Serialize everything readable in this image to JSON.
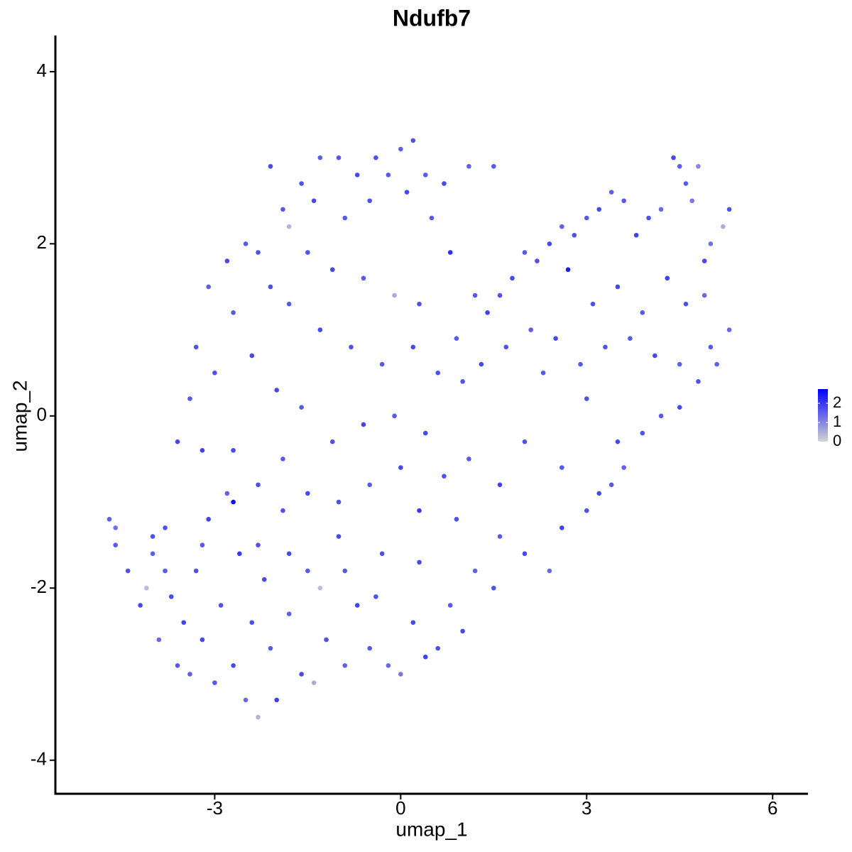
{
  "chart_data": {
    "type": "scatter",
    "title": "Ndufb7",
    "x_label": "umap_1",
    "y_label": "umap_2",
    "x": [
      -4.7,
      -4.6,
      -4.6,
      -4.4,
      -4.2,
      -4.1,
      -4.0,
      -3.9,
      -3.8,
      -3.7,
      -3.6,
      -3.5,
      -3.4,
      -3.3,
      -3.2,
      -3.1,
      -3.0,
      -2.9,
      -2.8,
      -2.7,
      -2.6,
      -2.5,
      -2.4,
      -2.3,
      -2.2,
      -2.1,
      -2.0,
      -1.9,
      -1.8,
      -1.6,
      -1.5,
      -1.4,
      -1.3,
      -1.2,
      -1.0,
      -0.9,
      -0.7,
      -0.5,
      -0.3,
      -0.2,
      0.0,
      0.2,
      0.4,
      0.6,
      0.8,
      1.0,
      1.2,
      1.5,
      1.6,
      2.0,
      2.4,
      2.6,
      3.0,
      3.2,
      3.4,
      3.6,
      3.9,
      4.2,
      4.5,
      4.8,
      5.0,
      5.1,
      5.3,
      5.3,
      5.2,
      5.0,
      4.9,
      4.7,
      4.5,
      4.4,
      4.6,
      4.8,
      4.2,
      4.0,
      3.8,
      3.6,
      3.4,
      3.2,
      3.0,
      2.8,
      2.6,
      2.4,
      2.2,
      2.0,
      1.8,
      1.6,
      1.4,
      1.2,
      2.7,
      3.1,
      3.5,
      3.9,
      4.3,
      4.6,
      4.9,
      3.7,
      4.1,
      4.5,
      3.3,
      2.9,
      2.5,
      2.1,
      1.7,
      1.3,
      0.9,
      0.8,
      1.0,
      2.3,
      3.0,
      3.5,
      2.6,
      2.0,
      1.6,
      1.1,
      -2.3,
      -2.5,
      -2.8,
      -3.1,
      -3.3,
      -3.4,
      -3.6,
      -3.2,
      -3.0,
      -2.7,
      -2.4,
      -2.1,
      -1.9,
      -2.1,
      -1.8,
      -1.6,
      -1.3,
      -1.0,
      -0.7,
      -0.4,
      -0.2,
      0.0,
      0.2,
      0.4,
      0.7,
      1.1,
      1.5,
      -1.4,
      -0.9,
      -0.5,
      0.1,
      0.5,
      -1.5,
      -1.1,
      -0.6,
      -0.1,
      0.3,
      -1.8,
      -1.3,
      -0.8,
      -0.3,
      0.2,
      0.6,
      -2.0,
      -1.6,
      -1.1,
      -0.6,
      -0.1,
      0.4,
      0.7,
      -2.7,
      -2.3,
      -1.9,
      -1.5,
      -1.0,
      -0.5,
      0.0,
      0.3,
      0.9,
      -2.7,
      -3.2,
      -2.3,
      -1.8,
      -0.9,
      -0.4,
      0.3,
      -3.8,
      -4.0
    ],
    "values": [
      -1.2,
      -1.3,
      -1.5,
      -1.8,
      -2.2,
      -2.0,
      -1.6,
      -2.6,
      -1.3,
      -2.1,
      -2.9,
      -2.4,
      -3.0,
      -1.8,
      -2.6,
      -1.2,
      -3.1,
      -2.2,
      -0.9,
      -2.9,
      -1.6,
      -3.3,
      -2.4,
      -3.5,
      -1.9,
      -2.7,
      -3.3,
      -1.1,
      -2.3,
      -3.0,
      -1.8,
      -3.1,
      -2.0,
      -2.6,
      -1.4,
      -2.9,
      -2.2,
      -2.7,
      -1.6,
      -2.9,
      -3.0,
      -2.4,
      -2.8,
      -2.7,
      -2.2,
      -2.5,
      -1.8,
      -2.0,
      -1.4,
      -1.6,
      -1.8,
      -1.3,
      -1.1,
      -0.9,
      -0.8,
      -0.6,
      -0.2,
      0.0,
      0.1,
      0.4,
      0.8,
      0.6,
      1.0,
      2.4,
      2.2,
      2.0,
      1.8,
      2.5,
      2.9,
      3.0,
      2.7,
      2.9,
      2.4,
      2.3,
      2.1,
      2.5,
      2.6,
      2.4,
      2.3,
      2.1,
      2.2,
      2.0,
      1.8,
      1.9,
      1.6,
      1.4,
      1.2,
      1.4,
      1.7,
      1.3,
      1.5,
      1.2,
      1.6,
      1.3,
      1.4,
      0.9,
      0.7,
      0.6,
      0.8,
      0.6,
      0.9,
      1.0,
      0.8,
      0.6,
      0.9,
      1.9,
      0.4,
      0.5,
      0.2,
      -0.3,
      -0.6,
      -0.3,
      -0.8,
      -0.5,
      1.9,
      2.0,
      1.8,
      1.5,
      0.8,
      0.2,
      -0.3,
      -0.4,
      0.5,
      1.2,
      0.7,
      1.5,
      2.4,
      2.9,
      2.2,
      2.7,
      3.0,
      3.0,
      2.8,
      3.0,
      2.8,
      3.1,
      3.2,
      2.8,
      2.7,
      2.9,
      2.9,
      2.5,
      2.3,
      2.5,
      2.6,
      2.3,
      1.9,
      1.7,
      1.6,
      1.4,
      1.3,
      1.3,
      1.0,
      0.8,
      0.6,
      0.8,
      0.5,
      0.3,
      0.1,
      -0.3,
      -0.1,
      0.0,
      -0.2,
      -0.7,
      -0.4,
      -0.8,
      -0.5,
      -0.9,
      -1.0,
      -0.8,
      -0.6,
      -1.1,
      -1.2,
      -1.0,
      -1.5,
      -1.5,
      -1.6,
      -1.8,
      -2.1,
      -1.7,
      -1.8,
      -1.4
    ],
    "expression": [
      1.5,
      1.3,
      1.6,
      1.7,
      1.8,
      0.3,
      1.5,
      1.4,
      1.7,
      1.8,
      1.6,
      1.9,
      1.5,
      1.7,
      1.8,
      1.9,
      1.6,
      1.7,
      1.5,
      1.8,
      2.0,
      1.4,
      1.7,
      0.4,
      1.8,
      1.6,
      1.9,
      1.7,
      1.5,
      1.8,
      1.6,
      0.5,
      0.3,
      1.7,
      1.8,
      1.5,
      1.9,
      1.6,
      1.7,
      1.4,
      1.2,
      1.8,
      1.9,
      1.7,
      1.6,
      1.8,
      1.5,
      1.7,
      1.6,
      1.8,
      1.4,
      1.9,
      1.7,
      1.8,
      1.6,
      1.5,
      1.7,
      1.6,
      1.8,
      1.7,
      1.6,
      1.5,
      1.4,
      1.7,
      0.5,
      1.3,
      1.8,
      1.2,
      1.5,
      1.8,
      1.6,
      1.0,
      1.4,
      1.7,
      1.9,
      1.6,
      1.5,
      1.8,
      1.6,
      1.7,
      1.5,
      1.8,
      1.7,
      1.6,
      1.8,
      1.7,
      1.9,
      1.6,
      2.4,
      1.7,
      1.8,
      1.6,
      1.9,
      1.7,
      1.4,
      1.6,
      1.8,
      1.5,
      1.7,
      1.6,
      1.8,
      1.5,
      1.7,
      1.8,
      1.6,
      2.1,
      1.7,
      1.6,
      1.7,
      1.8,
      1.6,
      1.7,
      1.9,
      1.6,
      1.7,
      1.6,
      1.8,
      1.5,
      1.7,
      1.6,
      1.8,
      1.9,
      1.7,
      1.6,
      1.8,
      1.7,
      1.6,
      1.8,
      0.4,
      1.7,
      1.5,
      1.6,
      1.8,
      1.7,
      1.6,
      1.5,
      1.7,
      1.6,
      1.8,
      1.5,
      1.6,
      1.8,
      1.6,
      1.7,
      1.8,
      1.6,
      1.7,
      1.8,
      1.6,
      0.5,
      1.7,
      1.6,
      1.8,
      1.7,
      1.6,
      1.8,
      1.7,
      1.8,
      1.6,
      1.7,
      1.9,
      1.6,
      1.8,
      1.7,
      1.8,
      1.7,
      1.6,
      1.8,
      1.7,
      1.6,
      1.8,
      2.0,
      1.7,
      2.6,
      1.6,
      1.7,
      1.8,
      1.6,
      1.7,
      1.8,
      1.6,
      1.7
    ],
    "xlim": [
      -5.57,
      6.57
    ],
    "xticks": [
      -3,
      0,
      3,
      6
    ],
    "ylim": [
      -4.39,
      4.42
    ],
    "yticks": [
      -4,
      -2,
      0,
      2,
      4
    ],
    "color_scale": {
      "low": "#d3d3d3",
      "high": "#0000ff",
      "lim": [
        0,
        2.74
      ],
      "ticks": [
        0,
        1,
        2
      ]
    },
    "grid": false
  }
}
